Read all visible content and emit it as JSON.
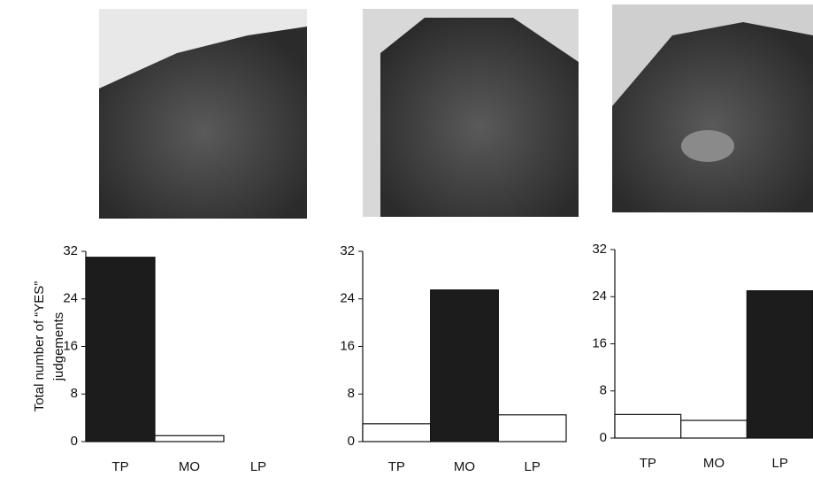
{
  "chart_data": [
    {
      "type": "bar",
      "ylabel": [
        "Total number of “YES”",
        "judgements"
      ],
      "categories": [
        "TP",
        "MO",
        "LP"
      ],
      "values": [
        31,
        1,
        0
      ],
      "colors": [
        "#1c1c1c",
        "#ffffff",
        "#ffffff"
      ],
      "ylim": [
        0,
        32
      ],
      "yticks": [
        0,
        8,
        16,
        24,
        32
      ]
    },
    {
      "type": "bar",
      "categories": [
        "TP",
        "MO",
        "LP"
      ],
      "values": [
        3,
        25.5,
        4.5
      ],
      "colors": [
        "#ffffff",
        "#1c1c1c",
        "#ffffff"
      ],
      "ylim": [
        0,
        32
      ],
      "yticks": [
        0,
        8,
        16,
        24,
        32
      ]
    },
    {
      "type": "bar",
      "categories": [
        "TP",
        "MO",
        "LP"
      ],
      "values": [
        4,
        3,
        25
      ],
      "colors": [
        "#ffffff",
        "#ffffff",
        "#1c1c1c"
      ],
      "ylim": [
        0,
        32
      ],
      "yticks": [
        0,
        8,
        16,
        24,
        32
      ]
    }
  ]
}
